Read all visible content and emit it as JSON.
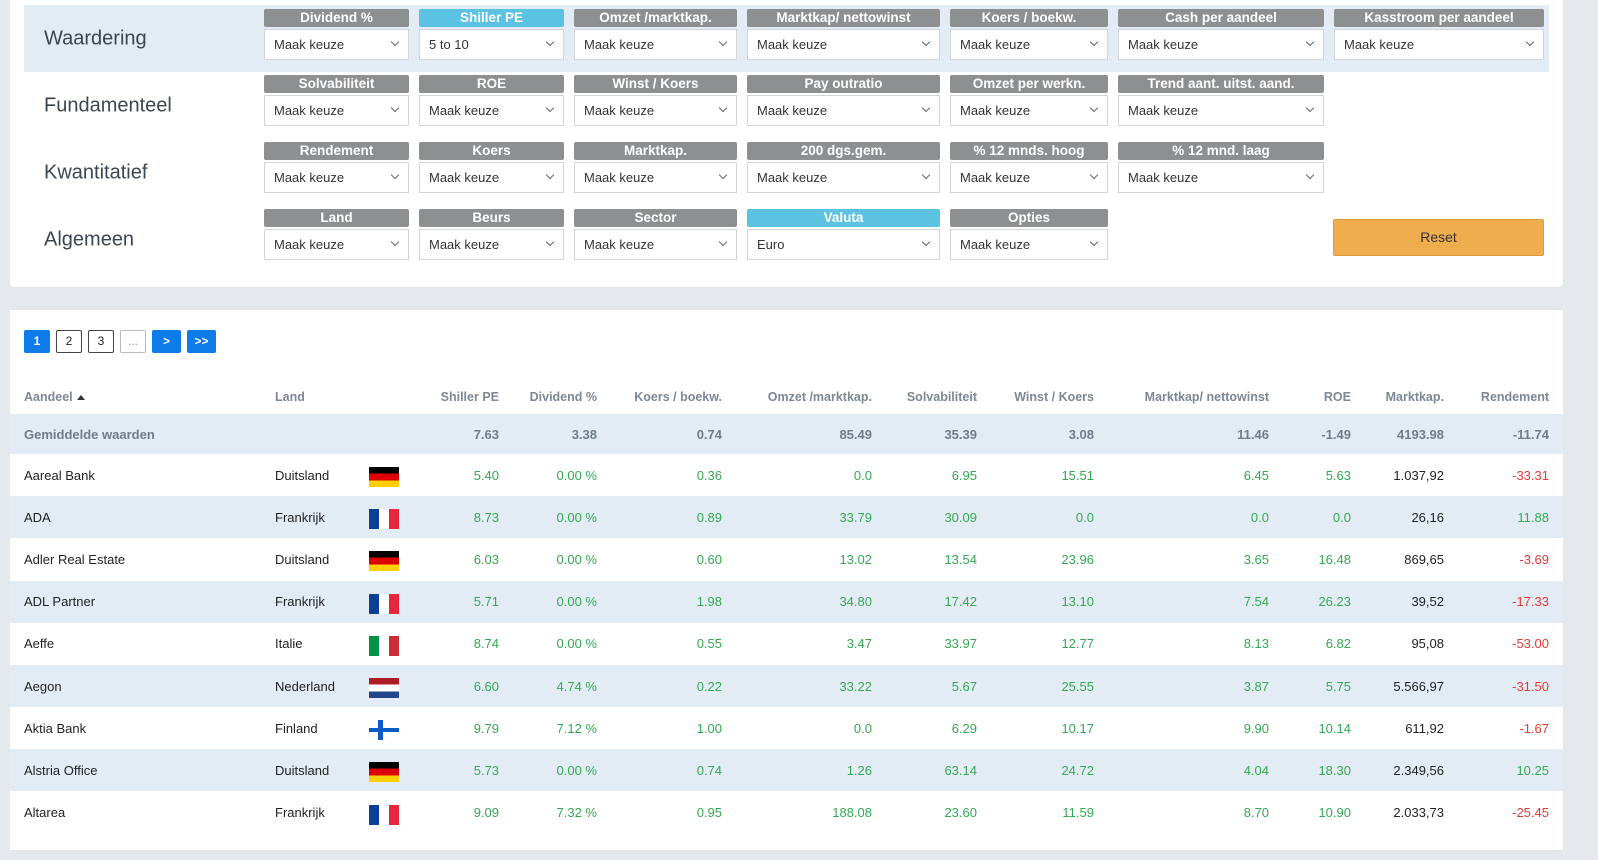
{
  "filters": {
    "rows": [
      {
        "title": "Waardering",
        "groups": [
          {
            "label": "Dividend %",
            "value": "Maak keuze",
            "active": false
          },
          {
            "label": "Shiller PE",
            "value": "5 to 10",
            "active": true
          },
          {
            "label": "Omzet /marktkap.",
            "value": "Maak keuze",
            "active": false
          },
          {
            "label": "Marktkap/ nettowinst",
            "value": "Maak keuze",
            "active": false
          },
          {
            "label": "Koers / boekw.",
            "value": "Maak keuze",
            "active": false
          },
          {
            "label": "Cash per aandeel",
            "value": "Maak keuze",
            "active": false
          },
          {
            "label": "Kasstroom per aandeel",
            "value": "Maak keuze",
            "active": false
          }
        ]
      },
      {
        "title": "Fundamenteel",
        "groups": [
          {
            "label": "Solvabiliteit",
            "value": "Maak keuze",
            "active": false
          },
          {
            "label": "ROE",
            "value": "Maak keuze",
            "active": false
          },
          {
            "label": "Winst / Koers",
            "value": "Maak keuze",
            "active": false
          },
          {
            "label": "Pay outratio",
            "value": "Maak keuze",
            "active": false
          },
          {
            "label": "Omzet per werkn.",
            "value": "Maak keuze",
            "active": false
          },
          {
            "label": "Trend aant. uitst. aand.",
            "value": "Maak keuze",
            "active": false
          }
        ]
      },
      {
        "title": "Kwantitatief",
        "groups": [
          {
            "label": "Rendement",
            "value": "Maak keuze",
            "active": false
          },
          {
            "label": "Koers",
            "value": "Maak keuze",
            "active": false
          },
          {
            "label": "Marktkap.",
            "value": "Maak keuze",
            "active": false
          },
          {
            "label": "200 dgs.gem.",
            "value": "Maak keuze",
            "active": false
          },
          {
            "label": "% 12 mnds. hoog",
            "value": "Maak keuze",
            "active": false
          },
          {
            "label": "% 12 mnd. laag",
            "value": "Maak keuze",
            "active": false
          }
        ]
      },
      {
        "title": "Algemeen",
        "groups": [
          {
            "label": "Land",
            "value": "Maak keuze",
            "active": false
          },
          {
            "label": "Beurs",
            "value": "Maak keuze",
            "active": false
          },
          {
            "label": "Sector",
            "value": "Maak keuze",
            "active": false
          },
          {
            "label": "Valuta",
            "value": "Euro",
            "active": true
          },
          {
            "label": "Opties",
            "value": "Maak keuze",
            "active": false
          }
        ]
      }
    ],
    "reset_label": "Reset"
  },
  "pagination": [
    "1",
    "2",
    "3",
    "...",
    ">",
    ">>"
  ],
  "table": {
    "columns": [
      "Aandeel",
      "Land",
      "Shiller PE",
      "Dividend %",
      "Koers / boekw.",
      "Omzet /marktkap.",
      "Solvabiliteit",
      "Winst / Koers",
      "Marktkap/ nettowinst",
      "ROE",
      "Marktkap.",
      "Rendement"
    ],
    "average": {
      "label": "Gemiddelde waarden",
      "values": [
        "7.63",
        "3.38",
        "0.74",
        "85.49",
        "35.39",
        "3.08",
        "11.46",
        "-1.49",
        "4193.98",
        "-11.74"
      ]
    },
    "rows": [
      {
        "name": "Aareal Bank",
        "country": "Duitsland",
        "flag": "de",
        "values": [
          "5.40",
          "0.00 %",
          "0.36",
          "0.0",
          "6.95",
          "15.51",
          "6.45",
          "5.63",
          "1.037,92",
          "-33.31"
        ]
      },
      {
        "name": "ADA",
        "country": "Frankrijk",
        "flag": "fr",
        "values": [
          "8.73",
          "0.00 %",
          "0.89",
          "33.79",
          "30.09",
          "0.0",
          "0.0",
          "0.0",
          "26,16",
          "11.88"
        ]
      },
      {
        "name": "Adler Real Estate",
        "country": "Duitsland",
        "flag": "de",
        "values": [
          "6.03",
          "0.00 %",
          "0.60",
          "13.02",
          "13.54",
          "23.96",
          "3.65",
          "16.48",
          "869,65",
          "-3.69"
        ]
      },
      {
        "name": "ADL Partner",
        "country": "Frankrijk",
        "flag": "fr",
        "values": [
          "5.71",
          "0.00 %",
          "1.98",
          "34.80",
          "17.42",
          "13.10",
          "7.54",
          "26.23",
          "39,52",
          "-17.33"
        ]
      },
      {
        "name": "Aeffe",
        "country": "Italie",
        "flag": "it",
        "values": [
          "8.74",
          "0.00 %",
          "0.55",
          "3.47",
          "33.97",
          "12.77",
          "8.13",
          "6.82",
          "95,08",
          "-53.00"
        ]
      },
      {
        "name": "Aegon",
        "country": "Nederland",
        "flag": "nl",
        "values": [
          "6.60",
          "4.74 %",
          "0.22",
          "33.22",
          "5.67",
          "25.55",
          "3.87",
          "5.75",
          "5.566,97",
          "-31.50"
        ]
      },
      {
        "name": "Aktia Bank",
        "country": "Finland",
        "flag": "fi",
        "values": [
          "9.79",
          "7.12 %",
          "1.00",
          "0.0",
          "6.29",
          "10.17",
          "9.90",
          "10.14",
          "611,92",
          "-1.67"
        ]
      },
      {
        "name": "Alstria Office",
        "country": "Duitsland",
        "flag": "de",
        "values": [
          "5.73",
          "0.00 %",
          "0.74",
          "1.26",
          "63.14",
          "24.72",
          "4.04",
          "18.30",
          "2.349,56",
          "10.25"
        ]
      },
      {
        "name": "Altarea",
        "country": "Frankrijk",
        "flag": "fr",
        "values": [
          "9.09",
          "7.32 %",
          "0.95",
          "188.08",
          "23.60",
          "11.59",
          "8.70",
          "10.90",
          "2.033,73",
          "-25.45"
        ]
      }
    ]
  }
}
